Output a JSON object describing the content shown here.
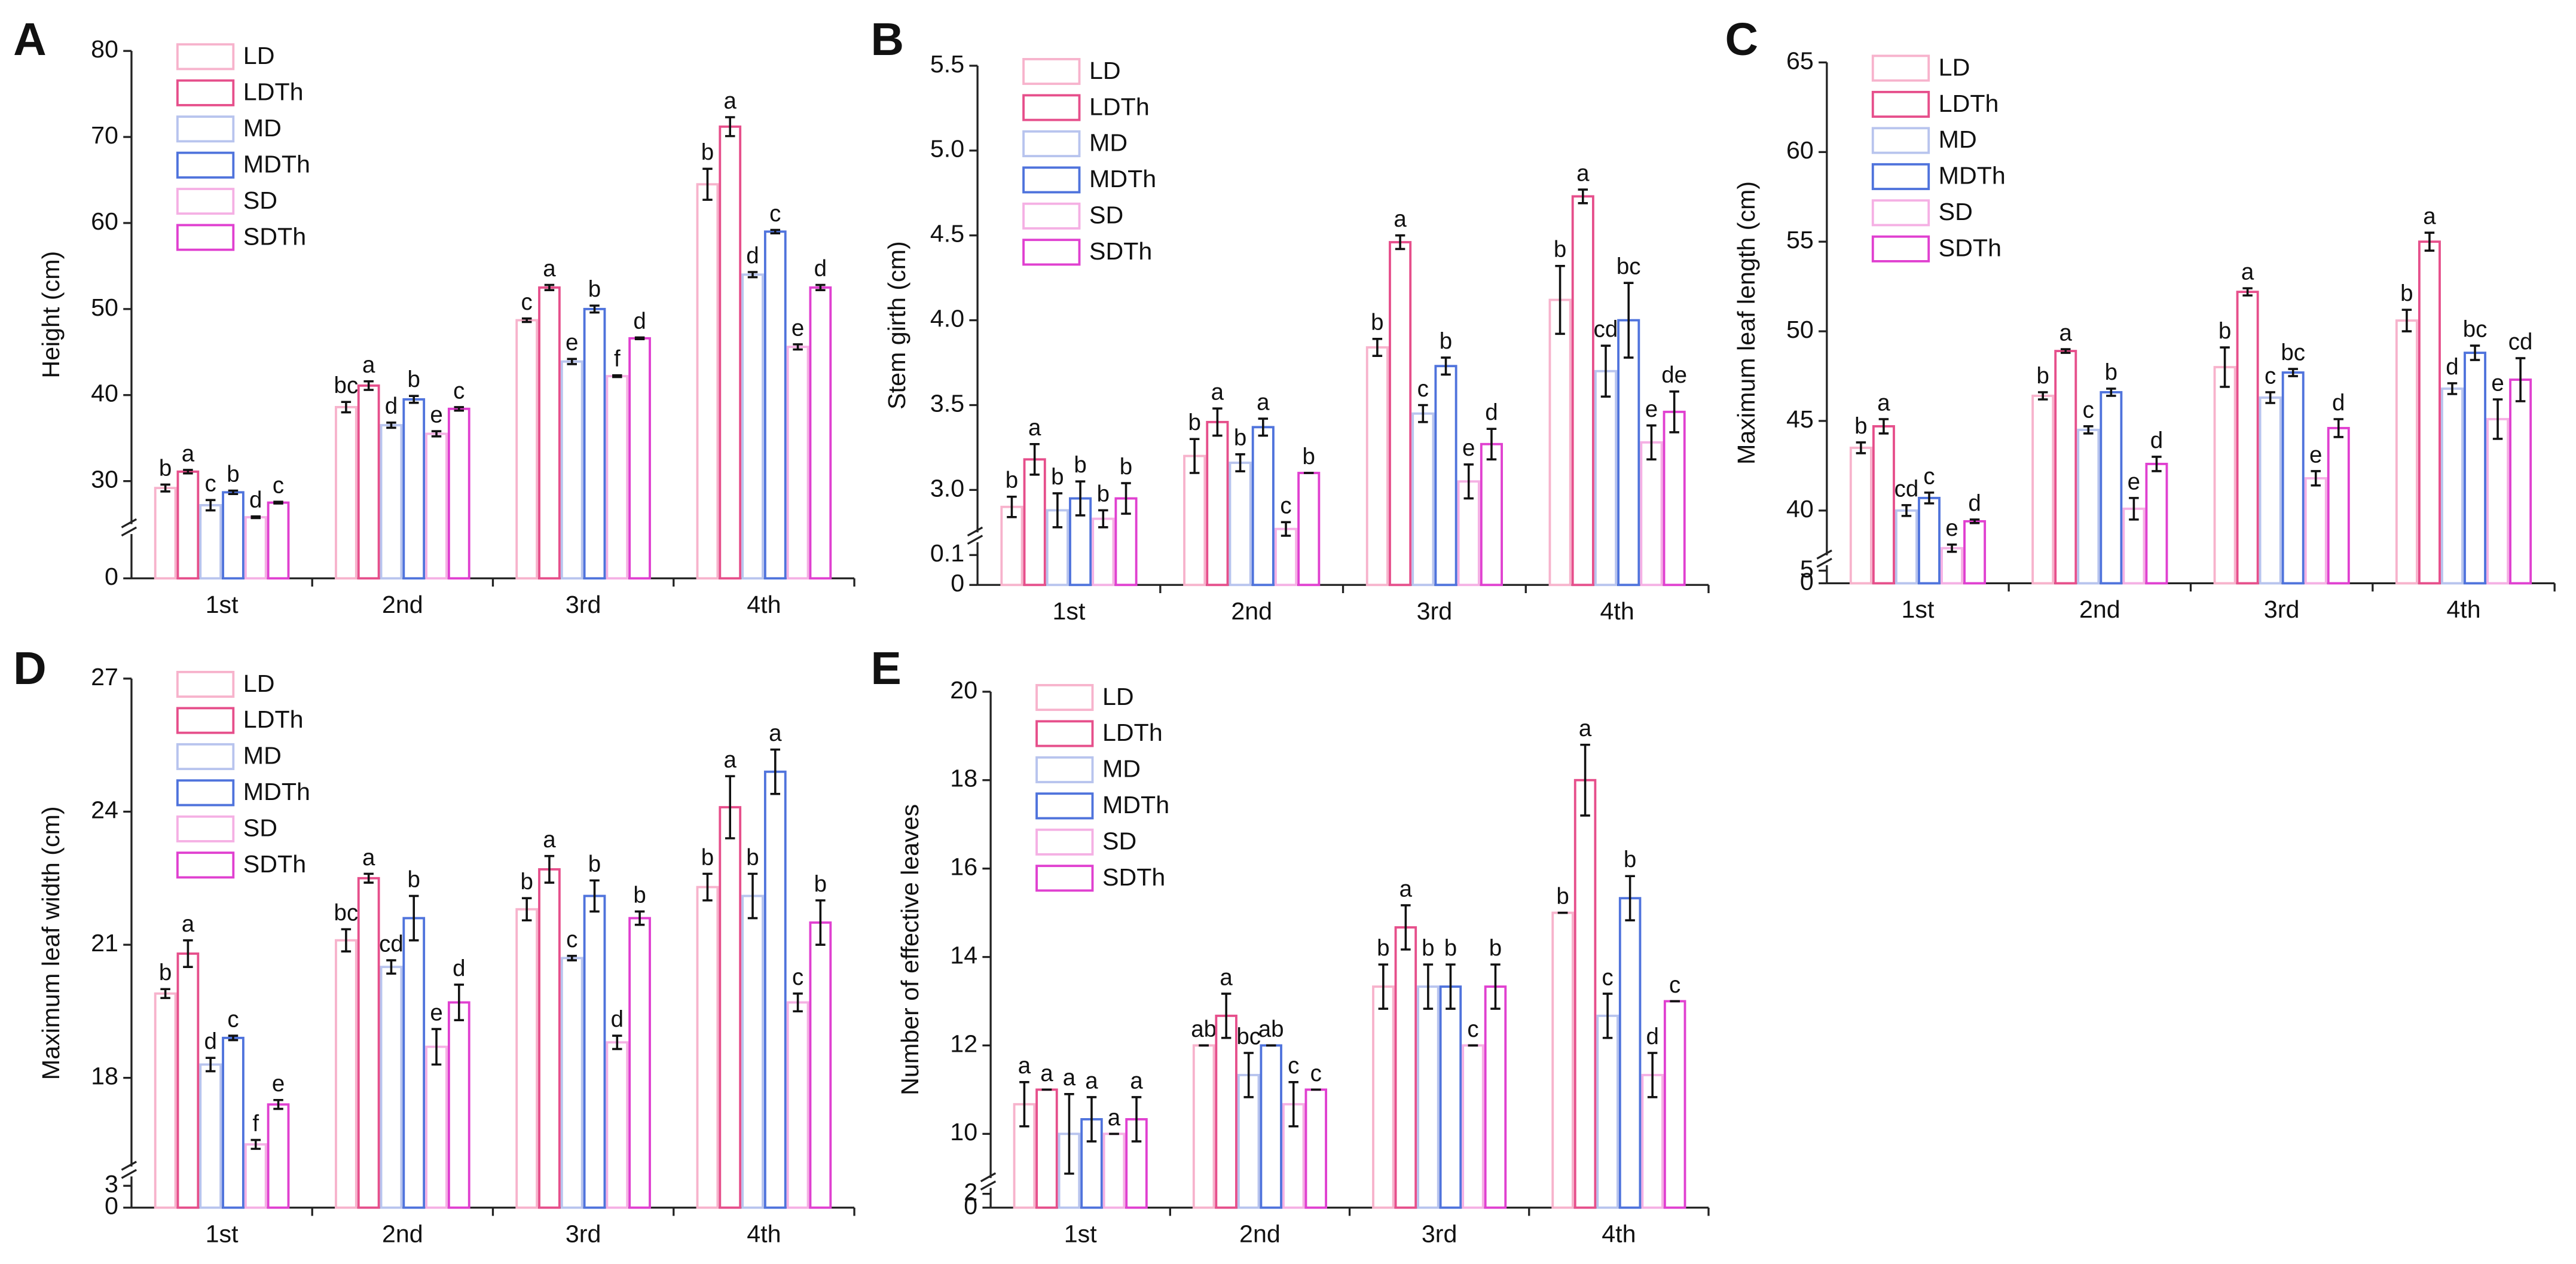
{
  "chart_data": [
    {
      "type": "bar",
      "panel": "A",
      "ylabel": "Height (cm)",
      "categories": [
        "1st",
        "2nd",
        "3rd",
        "4th"
      ],
      "ylim": [
        25,
        80
      ],
      "yticks": [
        30,
        40,
        50,
        60,
        70,
        80
      ],
      "yticks_low": [
        0
      ],
      "legend": "upper left",
      "series": [
        {
          "name": "LD",
          "color": "#f7b3cc",
          "values": [
            29.2,
            38.6,
            48.7,
            64.5
          ],
          "errors": [
            0.4,
            0.6,
            0.2,
            1.8
          ],
          "letters": [
            "b",
            "bc",
            "c",
            "b"
          ]
        },
        {
          "name": "LDTh",
          "color": "#e64f8b",
          "values": [
            31.1,
            41.1,
            52.5,
            71.2
          ],
          "errors": [
            0.2,
            0.5,
            0.3,
            1.1
          ],
          "letters": [
            "a",
            "a",
            "a",
            "a"
          ]
        },
        {
          "name": "MD",
          "color": "#b8c4ee",
          "values": [
            27.2,
            36.5,
            43.9,
            54.0
          ],
          "errors": [
            0.6,
            0.3,
            0.3,
            0.3
          ],
          "letters": [
            "c",
            "d",
            "e",
            "d"
          ]
        },
        {
          "name": "MDTh",
          "color": "#4f73dc",
          "values": [
            28.7,
            39.5,
            50.0,
            59.0
          ],
          "errors": [
            0.2,
            0.4,
            0.4,
            0.2
          ],
          "letters": [
            "b",
            "b",
            "b",
            "c"
          ]
        },
        {
          "name": "SD",
          "color": "#f5b0e4",
          "values": [
            25.8,
            35.5,
            42.2,
            45.6
          ],
          "errors": [
            0.1,
            0.3,
            0.1,
            0.3
          ],
          "letters": [
            "d",
            "e",
            "f",
            "e"
          ]
        },
        {
          "name": "SDTh",
          "color": "#e040d0",
          "values": [
            27.5,
            38.4,
            46.6,
            52.5
          ],
          "errors": [
            0.1,
            0.2,
            0.1,
            0.3
          ],
          "letters": [
            "c",
            "c",
            "d",
            "d"
          ]
        }
      ]
    },
    {
      "type": "bar",
      "panel": "B",
      "ylabel": "Stem girth (cm)",
      "categories": [
        "1st",
        "2nd",
        "3rd",
        "4th"
      ],
      "ylim": [
        2.75,
        5.5
      ],
      "yticks": [
        {
          "value": 3,
          "label": "3.0"
        },
        3.5,
        {
          "value": 4,
          "label": "4.0"
        },
        4.5,
        {
          "value": 5,
          "label": "5.0"
        },
        5.5
      ],
      "yticks_low": [
        0,
        0.1
      ],
      "legend": "upper left",
      "series": [
        {
          "name": "LD",
          "color": "#f7b3cc",
          "values": [
            2.9,
            3.2,
            3.84,
            4.12
          ],
          "errors": [
            0.06,
            0.1,
            0.05,
            0.2
          ],
          "letters": [
            "b",
            "b",
            "b",
            "b"
          ]
        },
        {
          "name": "LDTh",
          "color": "#e64f8b",
          "values": [
            3.18,
            3.4,
            4.46,
            4.73
          ],
          "errors": [
            0.09,
            0.08,
            0.04,
            0.04
          ],
          "letters": [
            "a",
            "a",
            "a",
            "a"
          ]
        },
        {
          "name": "MD",
          "color": "#b8c4ee",
          "values": [
            2.88,
            3.16,
            3.45,
            3.7
          ],
          "errors": [
            0.1,
            0.05,
            0.05,
            0.15
          ],
          "letters": [
            "b",
            "b",
            "c",
            "cd"
          ]
        },
        {
          "name": "MDTh",
          "color": "#4f73dc",
          "values": [
            2.95,
            3.37,
            3.73,
            4.0
          ],
          "errors": [
            0.1,
            0.05,
            0.05,
            0.22
          ],
          "letters": [
            "b",
            "a",
            "b",
            "bc"
          ]
        },
        {
          "name": "SD",
          "color": "#f5b0e4",
          "values": [
            2.83,
            2.77,
            3.05,
            3.28
          ],
          "errors": [
            0.05,
            0.04,
            0.1,
            0.1
          ],
          "letters": [
            "b",
            "c",
            "e",
            "e"
          ]
        },
        {
          "name": "SDTh",
          "color": "#e040d0",
          "values": [
            2.95,
            3.1,
            3.27,
            3.46
          ],
          "errors": [
            0.09,
            0,
            0.09,
            0.12
          ],
          "letters": [
            "b",
            "b",
            "d",
            "de"
          ]
        }
      ]
    },
    {
      "type": "bar",
      "panel": "C",
      "ylabel": "Maximum leaf length (cm)",
      "categories": [
        "1st",
        "2nd",
        "3rd",
        "4th"
      ],
      "ylim": [
        37.5,
        65
      ],
      "yticks": [
        40,
        45,
        50,
        55,
        60,
        65
      ],
      "yticks_low": [
        0,
        5
      ],
      "legend": "upper left",
      "series": [
        {
          "name": "LD",
          "color": "#f7b3cc",
          "values": [
            43.5,
            46.4,
            48.0,
            50.6
          ],
          "errors": [
            0.3,
            0.2,
            1.1,
            0.6
          ],
          "letters": [
            "b",
            "b",
            "b",
            "b"
          ]
        },
        {
          "name": "LDTh",
          "color": "#e64f8b",
          "values": [
            44.7,
            48.9,
            52.2,
            55.0
          ],
          "errors": [
            0.4,
            0.1,
            0.2,
            0.5
          ],
          "letters": [
            "a",
            "a",
            "a",
            "a"
          ]
        },
        {
          "name": "MD",
          "color": "#b8c4ee",
          "values": [
            40.0,
            44.5,
            46.3,
            46.8
          ],
          "errors": [
            0.3,
            0.2,
            0.3,
            0.3
          ],
          "letters": [
            "cd",
            "c",
            "c",
            "d"
          ]
        },
        {
          "name": "MDTh",
          "color": "#4f73dc",
          "values": [
            40.7,
            46.6,
            47.7,
            48.8
          ],
          "errors": [
            0.3,
            0.2,
            0.2,
            0.4
          ],
          "letters": [
            "c",
            "b",
            "bc",
            "bc"
          ]
        },
        {
          "name": "SD",
          "color": "#f5b0e4",
          "values": [
            37.9,
            40.1,
            41.8,
            45.1
          ],
          "errors": [
            0.2,
            0.6,
            0.4,
            1.1
          ],
          "letters": [
            "e",
            "e",
            "e",
            "e"
          ]
        },
        {
          "name": "SDTh",
          "color": "#e040d0",
          "values": [
            39.4,
            42.6,
            44.6,
            47.3
          ],
          "errors": [
            0.1,
            0.4,
            0.5,
            1.2
          ],
          "letters": [
            "d",
            "d",
            "d",
            "cd"
          ]
        }
      ]
    },
    {
      "type": "bar",
      "panel": "D",
      "ylabel": "Maximum leaf width (cm)",
      "categories": [
        "1st",
        "2nd",
        "3rd",
        "4th"
      ],
      "ylim": [
        16,
        27
      ],
      "yticks": [
        18,
        21,
        24,
        27
      ],
      "yticks_low": [
        0,
        3
      ],
      "legend": "upper left",
      "series": [
        {
          "name": "LD",
          "color": "#f7b3cc",
          "values": [
            19.9,
            21.1,
            21.8,
            22.3
          ],
          "errors": [
            0.1,
            0.25,
            0.25,
            0.3
          ],
          "letters": [
            "b",
            "bc",
            "b",
            "b"
          ]
        },
        {
          "name": "LDTh",
          "color": "#e64f8b",
          "values": [
            20.8,
            22.5,
            22.7,
            24.1
          ],
          "errors": [
            0.3,
            0.1,
            0.3,
            0.7
          ],
          "letters": [
            "a",
            "a",
            "a",
            "a"
          ]
        },
        {
          "name": "MD",
          "color": "#b8c4ee",
          "values": [
            18.3,
            20.5,
            20.7,
            22.1
          ],
          "errors": [
            0.15,
            0.15,
            0.05,
            0.5
          ],
          "letters": [
            "d",
            "cd",
            "c",
            "b"
          ]
        },
        {
          "name": "MDTh",
          "color": "#4f73dc",
          "values": [
            18.9,
            21.6,
            22.1,
            24.9
          ],
          "errors": [
            0.05,
            0.5,
            0.35,
            0.5
          ],
          "letters": [
            "c",
            "b",
            "b",
            "a"
          ]
        },
        {
          "name": "SD",
          "color": "#f5b0e4",
          "values": [
            16.5,
            18.7,
            18.8,
            19.7
          ],
          "errors": [
            0.1,
            0.4,
            0.15,
            0.2
          ],
          "letters": [
            "f",
            "e",
            "d",
            "c"
          ]
        },
        {
          "name": "SDTh",
          "color": "#e040d0",
          "values": [
            17.4,
            19.7,
            21.6,
            21.5
          ],
          "errors": [
            0.1,
            0.4,
            0.15,
            0.5
          ],
          "letters": [
            "e",
            "d",
            "b",
            "b"
          ]
        }
      ]
    },
    {
      "type": "bar",
      "panel": "E",
      "ylabel": "Number of effective leaves",
      "categories": [
        "1st",
        "2nd",
        "3rd",
        "4th"
      ],
      "ylim": [
        9,
        20
      ],
      "yticks": [
        10,
        12,
        14,
        16,
        18,
        20
      ],
      "yticks_low": [
        0,
        2
      ],
      "legend": "upper left",
      "series": [
        {
          "name": "LD",
          "color": "#f7b3cc",
          "values": [
            10.67,
            12,
            13.33,
            15
          ],
          "errors": [
            0.5,
            0,
            0.5,
            0
          ],
          "letters": [
            "a",
            "ab",
            "b",
            "b"
          ]
        },
        {
          "name": "LDTh",
          "color": "#e64f8b",
          "values": [
            11,
            12.67,
            14.67,
            18
          ],
          "errors": [
            0,
            0.5,
            0.5,
            0.8
          ],
          "letters": [
            "a",
            "a",
            "a",
            "a"
          ]
        },
        {
          "name": "MD",
          "color": "#b8c4ee",
          "values": [
            10,
            11.33,
            13.33,
            12.67
          ],
          "errors": [
            0.9,
            0.5,
            0.5,
            0.5
          ],
          "letters": [
            "a",
            "bc",
            "b",
            "c"
          ]
        },
        {
          "name": "MDTh",
          "color": "#4f73dc",
          "values": [
            10.33,
            12,
            13.33,
            15.33
          ],
          "errors": [
            0.5,
            0,
            0.5,
            0.5
          ],
          "letters": [
            "a",
            "ab",
            "b",
            "b"
          ]
        },
        {
          "name": "SD",
          "color": "#f5b0e4",
          "values": [
            10,
            10.67,
            12,
            11.33
          ],
          "errors": [
            0,
            0.5,
            0,
            0.5
          ],
          "letters": [
            "a",
            "c",
            "c",
            "d"
          ]
        },
        {
          "name": "SDTh",
          "color": "#e040d0",
          "values": [
            10.33,
            11,
            13.33,
            13
          ],
          "errors": [
            0.5,
            0,
            0.5,
            0
          ],
          "letters": [
            "a",
            "c",
            "b",
            "c"
          ]
        }
      ]
    }
  ]
}
